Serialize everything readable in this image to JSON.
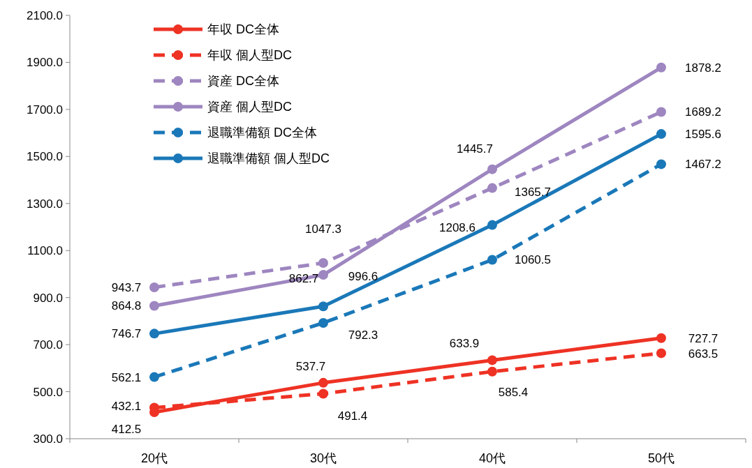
{
  "chart_data": {
    "type": "line",
    "categories": [
      "20代",
      "30代",
      "40代",
      "50代"
    ],
    "series": [
      {
        "name": "年収 DC全体",
        "color": "#ee3224",
        "line_style": "solid",
        "values": [
          412.5,
          537.7,
          633.9,
          727.7
        ]
      },
      {
        "name": "年収 個人型DC",
        "color": "#ee3224",
        "line_style": "dashed",
        "values": [
          432.1,
          491.4,
          585.4,
          663.5
        ]
      },
      {
        "name": "資産 DC全体",
        "color": "#9e86c0",
        "line_style": "dashed",
        "values": [
          943.7,
          1047.3,
          1365.7,
          1689.2
        ]
      },
      {
        "name": "資産 個人型DC",
        "color": "#9e86c0",
        "line_style": "solid",
        "values": [
          864.8,
          996.6,
          1445.7,
          1878.2
        ]
      },
      {
        "name": "退職準備額 DC全体",
        "color": "#1a78b8",
        "line_style": "dashed",
        "values": [
          562.1,
          792.3,
          1060.5,
          1467.2
        ]
      },
      {
        "name": "退職準備額 個人型DC",
        "color": "#1a78b8",
        "line_style": "solid",
        "values": [
          746.7,
          862.7,
          1208.6,
          1595.6
        ]
      }
    ],
    "ylim": [
      300,
      2100
    ],
    "yticks": [
      {
        "value": 300,
        "label": "300.0"
      },
      {
        "value": 500,
        "label": "500.0"
      },
      {
        "value": 700,
        "label": "700.0"
      },
      {
        "value": 900,
        "label": "900.0"
      },
      {
        "value": 1100,
        "label": "1100.0"
      },
      {
        "value": 1300,
        "label": "1300.0"
      },
      {
        "value": 1500,
        "label": "1500.0"
      },
      {
        "value": 1700,
        "label": "1700.0"
      },
      {
        "value": 1900,
        "label": "1900.0"
      },
      {
        "value": 2100,
        "label": "2100.0"
      }
    ],
    "marker": "circle",
    "legend": "top left",
    "data_labels": true,
    "grid": false
  }
}
